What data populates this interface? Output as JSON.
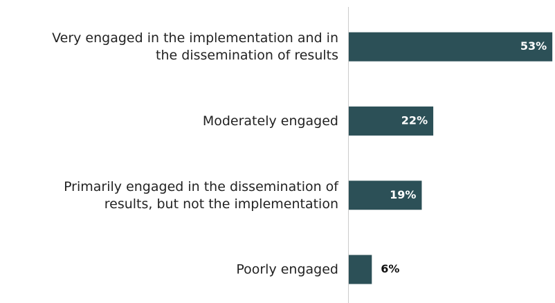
{
  "chart_data": {
    "type": "hbar",
    "categories": [
      "Very engaged in the implementation and in\nthe dissemination of results",
      "Moderately engaged",
      "Primarily engaged in the dissemination of\nresults, but not the implementation",
      "Poorly engaged"
    ],
    "values": [
      53,
      22,
      19,
      6
    ],
    "value_labels": [
      "53%",
      "22%",
      "19%",
      "6%"
    ],
    "color": "#2c5057"
  }
}
